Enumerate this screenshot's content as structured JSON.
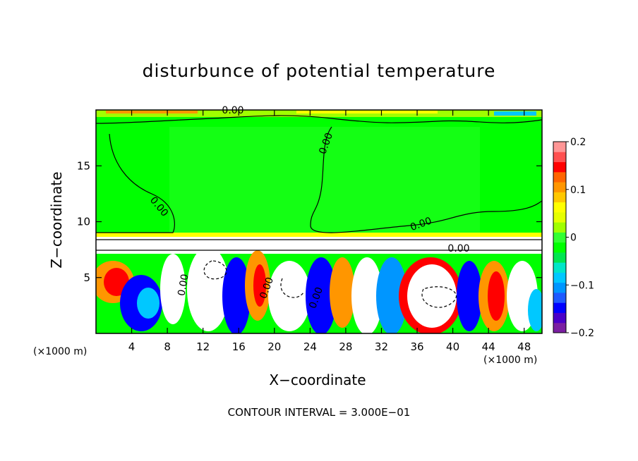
{
  "chart_data": {
    "type": "heatmap",
    "title": "disturbunce of potential temperature",
    "xlabel": "X−coordinate",
    "ylabel": "Z−coordinate",
    "x_unit": "(×1000 m)",
    "y_unit": "(×1000 m)",
    "xlim": [
      0,
      50
    ],
    "ylim": [
      0,
      20
    ],
    "x_ticks": [
      4,
      8,
      12,
      16,
      20,
      24,
      28,
      32,
      36,
      40,
      44,
      48
    ],
    "y_ticks": [
      5,
      10,
      15
    ],
    "colorbar": {
      "range": [
        -0.2,
        0.2
      ],
      "tick_labels": [
        "0.2",
        "0.1",
        "0",
        "−0.1",
        "−0.2"
      ],
      "tick_values": [
        0.2,
        0.1,
        0,
        -0.1,
        -0.2
      ],
      "colors": [
        "#7b1fa2",
        "#4a00c8",
        "#0000ff",
        "#1e5aff",
        "#0096ff",
        "#00c8ff",
        "#00e6c8",
        "#00e650",
        "#00ff00",
        "#32ff32",
        "#a0ff00",
        "#e6ff00",
        "#ffff00",
        "#ffc800",
        "#ff9600",
        "#ff6400",
        "#ff0000",
        "#ff5050",
        "#ff9696"
      ]
    },
    "contour_labels": [
      "0.00",
      "0.00",
      "0.00",
      "0.00",
      "0.00",
      "0.00",
      "0.00",
      "0.00"
    ],
    "contour_interval": "CONTOUR INTERVAL = 3.000E−01"
  }
}
